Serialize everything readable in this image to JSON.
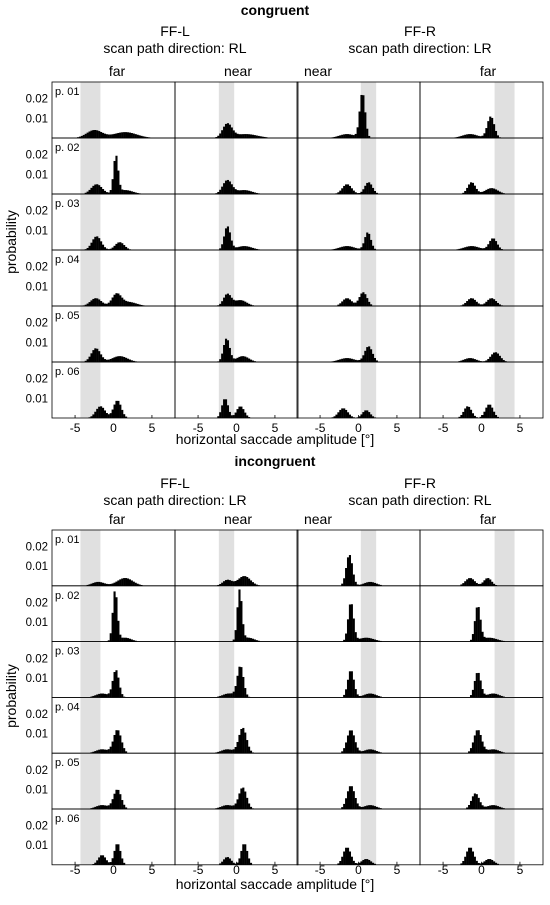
{
  "chart_data": {
    "type": "bar",
    "xlabel": "horizontal saccade amplitude [°]",
    "ylabel": "probability",
    "xlim": [
      -8,
      8
    ],
    "ylim": [
      0,
      0.027
    ],
    "xticks": [
      -5,
      0,
      5
    ],
    "xtick_labels": [
      "-5",
      "0",
      "5"
    ],
    "yticks": [
      0.01,
      0.02
    ],
    "ytick_labels": [
      "0.01",
      "0.02"
    ],
    "participants": [
      "p. 01",
      "p. 02",
      "p. 03",
      "p. 04",
      "p. 05",
      "p. 06"
    ],
    "panels": [
      {
        "title": "congruent",
        "groups": [
          {
            "label": "FF-L",
            "direction_label": "scan path direction: RL",
            "columns": [
              "far",
              "near"
            ]
          },
          {
            "label": "FF-R",
            "direction_label": "scan path direction: LR",
            "columns": [
              "near",
              "far"
            ]
          }
        ],
        "shaded_regions": [
          [
            -4.3,
            -1.7
          ],
          [
            -2.3,
            -0.3
          ],
          [
            0.3,
            2.3
          ],
          [
            1.7,
            4.3
          ]
        ],
        "peaks": [
          [
            [
              [
                -2.5,
                0.004,
                1.0
              ],
              [
                1.5,
                0.003,
                1.5
              ]
            ],
            [
              [
                -1.2,
                0.007,
                0.6
              ],
              [
                1.2,
                0.002,
                1.5
              ]
            ],
            [
              [
                0.5,
                0.023,
                0.35
              ],
              [
                -1.5,
                0.002,
                1.0
              ]
            ],
            [
              [
                1.2,
                0.011,
                0.45
              ],
              [
                -1.5,
                0.002,
                1.0
              ]
            ]
          ],
          [
            [
              [
                -2.2,
                0.005,
                0.7
              ],
              [
                0.3,
                0.019,
                0.3
              ],
              [
                1.5,
                0.002,
                1.0
              ]
            ],
            [
              [
                -1.2,
                0.007,
                0.6
              ],
              [
                1.0,
                0.002,
                1.0
              ]
            ],
            [
              [
                -1.5,
                0.005,
                0.6
              ],
              [
                1.3,
                0.006,
                0.5
              ]
            ],
            [
              [
                -1.3,
                0.006,
                0.5
              ],
              [
                1.3,
                0.003,
                0.8
              ]
            ]
          ],
          [
            [
              [
                -2.2,
                0.007,
                0.6
              ],
              [
                0.8,
                0.004,
                0.6
              ]
            ],
            [
              [
                -1.2,
                0.012,
                0.4
              ],
              [
                1.0,
                0.002,
                1.0
              ]
            ],
            [
              [
                1.2,
                0.009,
                0.4
              ],
              [
                -1.5,
                0.002,
                1.0
              ]
            ],
            [
              [
                1.5,
                0.006,
                0.5
              ],
              [
                -1.3,
                0.002,
                1.0
              ]
            ]
          ],
          [
            [
              [
                -2.3,
                0.004,
                0.7
              ],
              [
                0.4,
                0.006,
                0.6
              ],
              [
                2.0,
                0.002,
                1.0
              ]
            ],
            [
              [
                -1.2,
                0.006,
                0.5
              ],
              [
                0.5,
                0.003,
                0.8
              ]
            ],
            [
              [
                -1.5,
                0.004,
                0.6
              ],
              [
                0.6,
                0.007,
                0.5
              ]
            ],
            [
              [
                -1.3,
                0.004,
                0.6
              ],
              [
                1.3,
                0.004,
                0.6
              ]
            ]
          ],
          [
            [
              [
                -2.3,
                0.007,
                0.6
              ],
              [
                0.8,
                0.003,
                1.0
              ]
            ],
            [
              [
                -1.3,
                0.012,
                0.4
              ],
              [
                0.8,
                0.003,
                0.8
              ]
            ],
            [
              [
                1.3,
                0.008,
                0.5
              ],
              [
                -1.5,
                0.002,
                1.0
              ]
            ],
            [
              [
                -1.5,
                0.002,
                0.8
              ],
              [
                1.8,
                0.005,
                0.6
              ]
            ]
          ],
          [
            [
              [
                -1.7,
                0.006,
                0.6
              ],
              [
                0.5,
                0.009,
                0.5
              ]
            ],
            [
              [
                -1.5,
                0.01,
                0.4
              ],
              [
                0.5,
                0.006,
                0.5
              ]
            ],
            [
              [
                -2.0,
                0.005,
                0.6
              ],
              [
                1.0,
                0.004,
                0.5
              ]
            ],
            [
              [
                -1.8,
                0.006,
                0.5
              ],
              [
                1.0,
                0.007,
                0.5
              ]
            ]
          ]
        ]
      },
      {
        "title": "incongruent",
        "groups": [
          {
            "label": "FF-L",
            "direction_label": "scan path direction: LR",
            "columns": [
              "far",
              "near"
            ]
          },
          {
            "label": "FF-R",
            "direction_label": "scan path direction: RL",
            "columns": [
              "near",
              "far"
            ]
          }
        ],
        "shaded_regions": [
          [
            -4.3,
            -1.7
          ],
          [
            -2.3,
            -0.3
          ],
          [
            0.3,
            2.3
          ],
          [
            1.7,
            4.3
          ]
        ],
        "peaks": [
          [
            [
              [
                -2.0,
                0.002,
                0.8
              ],
              [
                1.5,
                0.004,
                1.0
              ]
            ],
            [
              [
                -1.2,
                0.003,
                0.6
              ],
              [
                1.0,
                0.005,
                0.8
              ]
            ],
            [
              [
                -1.2,
                0.016,
                0.4
              ],
              [
                1.5,
                0.002,
                0.8
              ]
            ],
            [
              [
                -1.5,
                0.004,
                0.6
              ],
              [
                0.8,
                0.004,
                0.5
              ]
            ]
          ],
          [
            [
              [
                0.2,
                0.026,
                0.3
              ],
              [
                1.5,
                0.002,
                0.8
              ]
            ],
            [
              [
                0.4,
                0.026,
                0.3
              ],
              [
                1.5,
                0.002,
                0.8
              ]
            ],
            [
              [
                -1.0,
                0.02,
                0.35
              ],
              [
                1.0,
                0.002,
                1.0
              ]
            ],
            [
              [
                -0.5,
                0.018,
                0.35
              ],
              [
                1.0,
                0.002,
                1.0
              ]
            ]
          ],
          [
            [
              [
                0.3,
                0.014,
                0.4
              ],
              [
                -1.5,
                0.002,
                0.8
              ]
            ],
            [
              [
                0.5,
                0.016,
                0.4
              ],
              [
                -1.0,
                0.002,
                0.8
              ]
            ],
            [
              [
                -1.0,
                0.014,
                0.4
              ],
              [
                1.5,
                0.002,
                0.8
              ]
            ],
            [
              [
                -0.5,
                0.013,
                0.4
              ],
              [
                1.5,
                0.002,
                0.8
              ]
            ]
          ],
          [
            [
              [
                0.5,
                0.012,
                0.5
              ],
              [
                -1.5,
                0.002,
                0.8
              ]
            ],
            [
              [
                0.8,
                0.013,
                0.5
              ],
              [
                -1.2,
                0.002,
                0.8
              ]
            ],
            [
              [
                -1.0,
                0.012,
                0.5
              ],
              [
                1.5,
                0.002,
                0.8
              ]
            ],
            [
              [
                -0.5,
                0.012,
                0.5
              ],
              [
                1.5,
                0.002,
                0.8
              ]
            ]
          ],
          [
            [
              [
                0.5,
                0.01,
                0.5
              ],
              [
                -1.5,
                0.002,
                0.8
              ]
            ],
            [
              [
                0.8,
                0.011,
                0.5
              ],
              [
                -1.2,
                0.002,
                0.8
              ]
            ],
            [
              [
                -1.0,
                0.012,
                0.5
              ],
              [
                1.5,
                0.002,
                0.8
              ]
            ],
            [
              [
                -0.8,
                0.008,
                0.5
              ],
              [
                1.5,
                0.002,
                0.8
              ]
            ]
          ],
          [
            [
              [
                -1.5,
                0.005,
                0.5
              ],
              [
                0.5,
                0.011,
                0.4
              ]
            ],
            [
              [
                -1.2,
                0.004,
                0.5
              ],
              [
                1.0,
                0.011,
                0.4
              ]
            ],
            [
              [
                -1.5,
                0.009,
                0.5
              ],
              [
                1.0,
                0.003,
                0.6
              ]
            ],
            [
              [
                -1.5,
                0.009,
                0.5
              ],
              [
                1.0,
                0.003,
                0.6
              ]
            ]
          ]
        ]
      }
    ]
  }
}
